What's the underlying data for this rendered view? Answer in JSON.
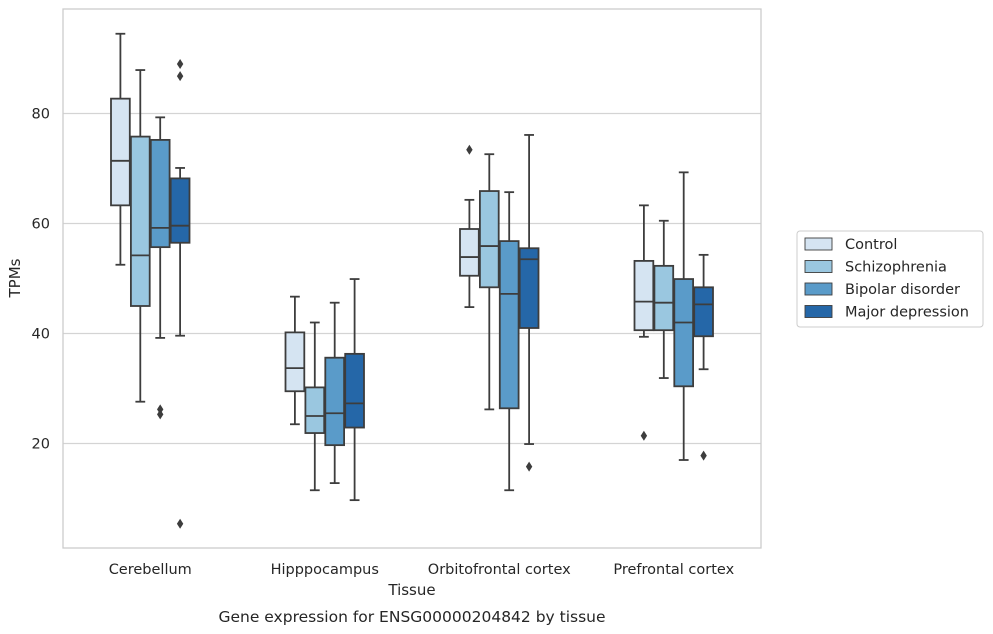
{
  "chart_data": {
    "type": "box",
    "title": "",
    "caption": "Gene expression for ENSG00000204842 by tissue",
    "xlabel": "Tissue",
    "ylabel": "TPMs",
    "ylim": [
      1,
      99
    ],
    "yticks": [
      20,
      40,
      60,
      80
    ],
    "grid": "horizontal",
    "legend_position": "right",
    "categories": [
      "Cerebellum",
      "Hipppocampus",
      "Orbitofrontal cortex",
      "Prefrontal cortex"
    ],
    "series": [
      {
        "name": "Control",
        "color": "#d5e4f2",
        "boxes": [
          {
            "whisker_low": 52.5,
            "q1": 63.3,
            "median": 71.4,
            "q3": 82.7,
            "whisker_high": 94.5,
            "outliers": []
          },
          {
            "whisker_low": 23.5,
            "q1": 29.5,
            "median": 33.7,
            "q3": 40.2,
            "whisker_high": 46.7,
            "outliers": []
          },
          {
            "whisker_low": 44.8,
            "q1": 50.5,
            "median": 53.9,
            "q3": 59.0,
            "whisker_high": 64.3,
            "outliers": [
              73.4
            ]
          },
          {
            "whisker_low": 39.4,
            "q1": 40.6,
            "median": 45.8,
            "q3": 53.2,
            "whisker_high": 63.3,
            "outliers": [
              21.4
            ]
          }
        ]
      },
      {
        "name": "Schizophrenia",
        "color": "#9ac7e0",
        "boxes": [
          {
            "whisker_low": 27.6,
            "q1": 45.0,
            "median": 54.2,
            "q3": 75.8,
            "whisker_high": 87.9,
            "outliers": []
          },
          {
            "whisker_low": 11.5,
            "q1": 21.9,
            "median": 25.0,
            "q3": 30.2,
            "whisker_high": 42.0,
            "outliers": []
          },
          {
            "whisker_low": 26.2,
            "q1": 48.4,
            "median": 55.9,
            "q3": 65.9,
            "whisker_high": 72.6,
            "outliers": []
          },
          {
            "whisker_low": 31.9,
            "q1": 40.6,
            "median": 45.6,
            "q3": 52.3,
            "whisker_high": 60.5,
            "outliers": []
          }
        ]
      },
      {
        "name": "Bipolar disorder",
        "color": "#5a9bc9",
        "boxes": [
          {
            "whisker_low": 39.2,
            "q1": 55.7,
            "median": 59.2,
            "q3": 75.2,
            "whisker_high": 79.3,
            "outliers": [
              26.2,
              25.3
            ]
          },
          {
            "whisker_low": 12.8,
            "q1": 19.7,
            "median": 25.5,
            "q3": 35.6,
            "whisker_high": 45.6,
            "outliers": []
          },
          {
            "whisker_low": 11.5,
            "q1": 26.4,
            "median": 47.2,
            "q3": 56.8,
            "whisker_high": 65.7,
            "outliers": []
          },
          {
            "whisker_low": 17.0,
            "q1": 30.4,
            "median": 42.0,
            "q3": 49.9,
            "whisker_high": 69.3,
            "outliers": []
          }
        ]
      },
      {
        "name": "Major depression",
        "color": "#2567a8",
        "boxes": [
          {
            "whisker_low": 39.6,
            "q1": 56.5,
            "median": 59.6,
            "q3": 68.2,
            "whisker_high": 70.1,
            "outliers": [
              89.0,
              86.8,
              5.4
            ]
          },
          {
            "whisker_low": 9.7,
            "q1": 22.9,
            "median": 27.3,
            "q3": 36.3,
            "whisker_high": 49.9,
            "outliers": []
          },
          {
            "whisker_low": 19.9,
            "q1": 41.0,
            "median": 53.5,
            "q3": 55.5,
            "whisker_high": 76.1,
            "outliers": [
              15.8
            ]
          },
          {
            "whisker_low": 33.5,
            "q1": 39.5,
            "median": 45.3,
            "q3": 48.4,
            "whisker_high": 54.3,
            "outliers": [
              17.8
            ]
          }
        ]
      }
    ]
  }
}
